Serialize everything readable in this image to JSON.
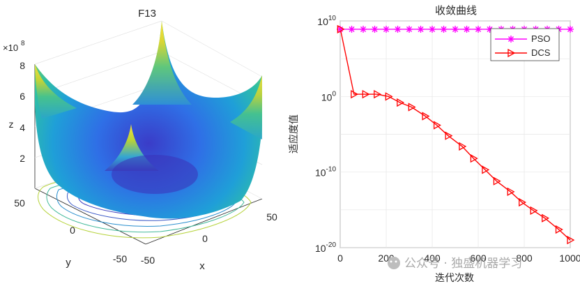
{
  "surface_plot": {
    "title": "F13",
    "xlabel": "x",
    "ylabel": "y",
    "zlabel": "z",
    "z_exponent_base": "×10",
    "z_exponent_power": "8",
    "z_ticks": [
      "2",
      "4",
      "6",
      "8"
    ],
    "x_ticks": [
      "-50",
      "0",
      "50"
    ],
    "y_ticks": [
      "50",
      "0",
      "-50"
    ]
  },
  "chart_data": {
    "type": "line",
    "title": "收敛曲线",
    "xlabel": "迭代次数",
    "ylabel": "适应度值",
    "xlim": [
      0,
      1000
    ],
    "ylim_log10": [
      -20,
      10
    ],
    "yscale": "log",
    "x_ticks": [
      "0",
      "200",
      "400",
      "600",
      "800",
      "1000"
    ],
    "y_ticks": [
      {
        "base": "10",
        "exp": "10",
        "log10": 10
      },
      {
        "base": "10",
        "exp": "0",
        "log10": 0
      },
      {
        "base": "10",
        "exp": "-10",
        "log10": -10
      },
      {
        "base": "10",
        "exp": "-20",
        "log10": -20
      }
    ],
    "legend_position": "top-right",
    "series": [
      {
        "name": "PSO",
        "color": "#ff00ff",
        "marker": "asterisk",
        "x": [
          0,
          50,
          100,
          150,
          200,
          250,
          300,
          350,
          400,
          450,
          500,
          550,
          600,
          650,
          700,
          750,
          800,
          850,
          900,
          950,
          1000
        ],
        "log10_y": [
          8.9,
          8.9,
          8.9,
          8.9,
          8.9,
          8.9,
          8.9,
          8.9,
          8.9,
          8.9,
          8.9,
          8.9,
          8.9,
          8.9,
          8.9,
          8.9,
          8.9,
          8.9,
          8.9,
          8.9,
          8.9
        ]
      },
      {
        "name": "DCS",
        "color": "#ff0000",
        "marker": "triangle-right",
        "x": [
          1,
          60,
          110,
          160,
          210,
          260,
          310,
          370,
          420,
          470,
          530,
          580,
          630,
          680,
          740,
          790,
          840,
          890,
          950,
          1000
        ],
        "log10_y": [
          8.9,
          0.3,
          0.3,
          0.3,
          0.0,
          -0.8,
          -1.4,
          -2.6,
          -3.8,
          -5.2,
          -6.6,
          -8.2,
          -9.7,
          -11.2,
          -12.6,
          -14.0,
          -15.1,
          -16.1,
          -17.6,
          -19.0
        ]
      }
    ]
  },
  "watermark": {
    "text": "公众号 · 独盛机器学习"
  }
}
